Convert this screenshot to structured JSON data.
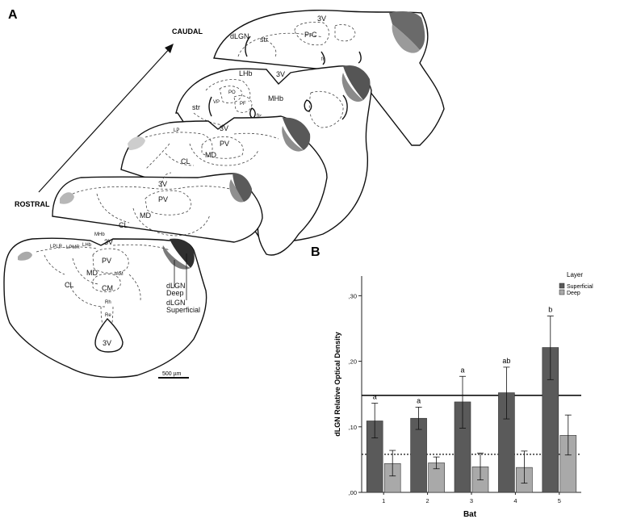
{
  "panel_a": {
    "letter": "A",
    "arrow_end_label": "CAUDAL",
    "arrow_start_label": "ROSTRAL",
    "scale_bar": "500 µm",
    "section1_labels": {
      "v3": "3V",
      "dlgn": "dLGN",
      "str": "str",
      "prc": "PrC",
      "fr": "fr"
    },
    "section2_labels": {
      "lhb": "LHb",
      "v3": "3V",
      "mhb": "MHb",
      "vp": "VP",
      "po": "PO",
      "pf": "PF",
      "str": "str",
      "fr": "fr"
    },
    "section3_labels": {
      "lp": "LP",
      "v3": "3V",
      "pv": "PV",
      "md": "MD",
      "cl": "CL"
    },
    "section4_labels": {
      "v3": "3V",
      "pv": "PV",
      "md": "MD",
      "cl": "CL"
    },
    "section5_labels": {
      "mhb": "MHb",
      "lplr": "LPLR",
      "lpmr": "LPMR",
      "lhb": "LHb",
      "v3": "3V",
      "pv": "PV",
      "iam": "IAM",
      "md": "MD",
      "cl": "CL",
      "cm": "CM",
      "rh": "Rh",
      "re": "Re",
      "v3_bottom": "3V"
    },
    "dlgn_deep": "dLGN\nDeep",
    "dlgn_superficial": "dLGN\nSuperficial"
  },
  "panel_b": {
    "letter": "B",
    "legend_title": "Layer",
    "legend_items": [
      {
        "label": "Superficial",
        "color": "#5a5a5a"
      },
      {
        "label": "Deep",
        "color": "#a9a9a9"
      }
    ]
  },
  "chart_data": {
    "type": "bar",
    "xlabel": "Bat",
    "ylabel": "dLGN Relative Optical Density",
    "categories": [
      "1",
      "2",
      "3",
      "4",
      "5"
    ],
    "ylim": [
      0,
      0.33
    ],
    "yticks": [
      0,
      0.1,
      0.2,
      0.3
    ],
    "ytick_labels": [
      ",00",
      ",10",
      ",20",
      ",30"
    ],
    "series": [
      {
        "name": "Superficial",
        "color": "#5a5a5a",
        "values": [
          0.109,
          0.113,
          0.138,
          0.152,
          0.221
        ],
        "err_low": [
          0.083,
          0.096,
          0.098,
          0.112,
          0.172
        ],
        "err_high": [
          0.136,
          0.13,
          0.177,
          0.191,
          0.269
        ]
      },
      {
        "name": "Deep",
        "color": "#a9a9a9",
        "values": [
          0.044,
          0.045,
          0.039,
          0.038,
          0.087
        ],
        "err_low": [
          0.025,
          0.036,
          0.019,
          0.014,
          0.057
        ],
        "err_high": [
          0.064,
          0.054,
          0.06,
          0.063,
          0.118
        ]
      }
    ],
    "significance_letters": [
      "a",
      "a",
      "a",
      "ab",
      "b"
    ],
    "reference_lines": [
      {
        "y": 0.148,
        "style": "solid"
      },
      {
        "y": 0.058,
        "style": "dotted"
      }
    ]
  }
}
